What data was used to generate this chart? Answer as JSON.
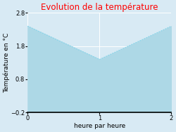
{
  "title": "Evolution de la température",
  "title_color": "#ff0000",
  "xlabel": "heure par heure",
  "ylabel": "Température en °C",
  "x": [
    0,
    1,
    2
  ],
  "y": [
    2.4,
    1.4,
    2.4
  ],
  "xlim": [
    0,
    2
  ],
  "ylim": [
    -0.2,
    2.8
  ],
  "xticks": [
    0,
    1,
    2
  ],
  "yticks": [
    -0.2,
    0.8,
    1.8,
    2.8
  ],
  "line_color": "#7dd4eb",
  "fill_color": "#add8e6",
  "fig_bg_color": "#d8eaf4",
  "axes_bg_color": "#d8eaf4",
  "grid_color": "#ffffff",
  "title_fontsize": 8.5,
  "label_fontsize": 6.5,
  "tick_fontsize": 6.0
}
